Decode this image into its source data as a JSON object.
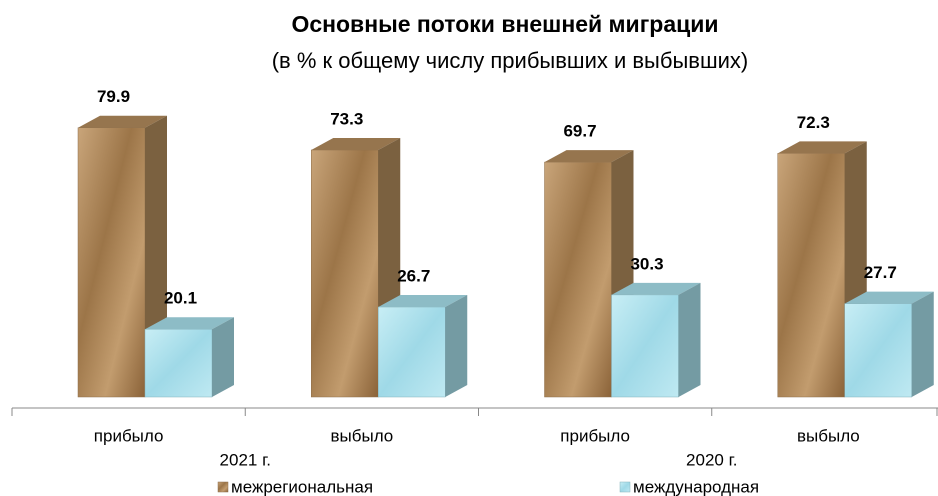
{
  "chart_data": {
    "type": "bar3d",
    "title": "Основные потоки внешней миграции",
    "subtitle": "(в % к общему числу прибывших и выбывших)",
    "categories": [
      "прибыло",
      "выбыло",
      "прибыло",
      "выбыло"
    ],
    "groups": [
      "2021 г.",
      "2020 г."
    ],
    "series": [
      {
        "name": "межрегиональная",
        "color": "#b08a5c",
        "values": [
          79.9,
          73.3,
          69.7,
          72.3
        ]
      },
      {
        "name": "международная",
        "color": "#a6dde9",
        "values": [
          20.1,
          26.7,
          30.3,
          27.7
        ]
      }
    ]
  }
}
